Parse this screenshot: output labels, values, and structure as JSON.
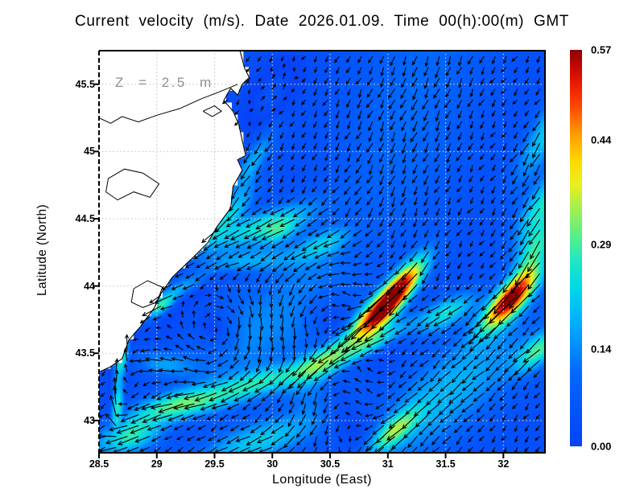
{
  "title": "Current velocity (m/s). Date 2026.01.09. Time 00(h):00(m) GMT",
  "annotation": {
    "depth_label": "Z = 2.5 m",
    "color": "#8f8f8f"
  },
  "axes": {
    "x": {
      "label": "Longitude (East)",
      "range": [
        28.5,
        32.36
      ],
      "ticks": [
        "28.5",
        "29",
        "29.5",
        "30",
        "30.5",
        "31",
        "31.5",
        "32"
      ],
      "tick_values": [
        28.5,
        29,
        29.5,
        30,
        30.5,
        31,
        31.5,
        32
      ]
    },
    "y": {
      "label": "Latitude (North)",
      "range": [
        42.76,
        45.75
      ],
      "ticks": [
        "43",
        "43.5",
        "44",
        "44.5",
        "45",
        "45.5"
      ],
      "tick_values": [
        43,
        43.5,
        44,
        44.5,
        45,
        45.5
      ]
    }
  },
  "grid": {
    "lon_lines": [
      29,
      29.5,
      30,
      30.5,
      31,
      31.5,
      32
    ],
    "lat_lines": [
      43,
      43.5,
      44,
      44.5,
      45,
      45.5
    ],
    "color": "#c9c9c9"
  },
  "colorbar": {
    "vmin": 0.0,
    "vmax": 0.57,
    "tick_labels": [
      "0.57",
      "0.44",
      "0.29",
      "0.14",
      "0.00"
    ],
    "tick_values": [
      0.57,
      0.44,
      0.29,
      0.14,
      0.0
    ]
  },
  "chart_data": {
    "type": "heatmap",
    "subtype": "current_speed_with_vector_arrows",
    "units": "m/s",
    "depth_m": 2.5,
    "speed_range": [
      0.0,
      0.57
    ],
    "arrow_color": "#000000",
    "land_color": "#ffffff",
    "colormap_stops": [
      [
        0.0,
        "#0742f8"
      ],
      [
        0.18,
        "#0066ff"
      ],
      [
        0.3,
        "#00a8ff"
      ],
      [
        0.4,
        "#00d8e8"
      ],
      [
        0.47,
        "#20e8c0"
      ],
      [
        0.53,
        "#58ee8c"
      ],
      [
        0.6,
        "#a0f050"
      ],
      [
        0.66,
        "#e8f020"
      ],
      [
        0.72,
        "#ffd800"
      ],
      [
        0.79,
        "#ff9900"
      ],
      [
        0.86,
        "#ff4400"
      ],
      [
        0.93,
        "#e01000"
      ],
      [
        1.0,
        "#900000"
      ]
    ],
    "hotspots": [
      {
        "lon": 31.07,
        "lat": 43.95,
        "speed": 0.57,
        "note": "primary jet core, oriented NE-SW, flow toward SW"
      },
      {
        "lon": 32.06,
        "lat": 43.9,
        "speed": 0.55,
        "note": "secondary jet core, oriented NE-SW, flow toward SW"
      }
    ],
    "background_flow": {
      "u": -0.025,
      "v": -0.03
    },
    "flow_blobs": [
      [
        32.38,
        45.15,
        235,
        0.17,
        0.45,
        0.13
      ],
      [
        32.34,
        44.62,
        230,
        0.2,
        0.35,
        0.12
      ],
      [
        32.28,
        44.28,
        235,
        0.22,
        0.28,
        0.12
      ],
      [
        32.06,
        43.9,
        222,
        0.52,
        0.3,
        0.105
      ],
      [
        31.5,
        43.8,
        205,
        0.2,
        0.28,
        0.1
      ],
      [
        31.07,
        43.95,
        225,
        0.55,
        0.33,
        0.1
      ],
      [
        30.85,
        43.75,
        215,
        0.28,
        0.25,
        0.12
      ],
      [
        30.5,
        43.48,
        210,
        0.26,
        0.35,
        0.11
      ],
      [
        29.95,
        43.3,
        195,
        0.2,
        0.45,
        0.1
      ],
      [
        29.2,
        43.12,
        190,
        0.26,
        0.4,
        0.11
      ],
      [
        28.75,
        42.88,
        195,
        0.24,
        0.3,
        0.13
      ],
      [
        29.85,
        44.43,
        197,
        0.2,
        0.55,
        0.11
      ],
      [
        30.06,
        44.4,
        200,
        0.13,
        0.18,
        0.08
      ],
      [
        30.45,
        44.32,
        200,
        0.13,
        0.25,
        0.09
      ],
      [
        29.75,
        44.18,
        185,
        0.15,
        0.4,
        0.09
      ],
      [
        29.82,
        44.9,
        235,
        0.14,
        0.35,
        0.09
      ],
      [
        29.62,
        44.52,
        220,
        0.15,
        0.3,
        0.08
      ],
      [
        30.0,
        45.42,
        50,
        0.09,
        0.3,
        0.15
      ],
      [
        28.7,
        43.5,
        80,
        0.3,
        0.22,
        0.065
      ],
      [
        28.66,
        43.08,
        85,
        0.3,
        0.2,
        0.06
      ],
      [
        29.05,
        43.42,
        175,
        0.13,
        0.25,
        0.1
      ],
      [
        31.5,
        43.2,
        215,
        0.15,
        0.9,
        0.3
      ],
      [
        30.9,
        43.58,
        207,
        0.17,
        0.35,
        0.07
      ],
      [
        31.05,
        42.92,
        215,
        0.22,
        0.25,
        0.09
      ],
      [
        32.3,
        43.52,
        215,
        0.22,
        0.22,
        0.1
      ],
      [
        31.2,
        45.3,
        250,
        0.07,
        1.2,
        0.5
      ],
      [
        29.25,
        44.0,
        200,
        0.15,
        0.25,
        0.08
      ],
      [
        29.03,
        43.85,
        210,
        0.24,
        0.15,
        0.06
      ],
      [
        29.9,
        42.85,
        195,
        0.18,
        0.6,
        0.15
      ]
    ],
    "vortices": [
      [
        30.45,
        43.8,
        0.08,
        0.3,
        1
      ],
      [
        29.55,
        43.65,
        0.08,
        0.25,
        -1
      ],
      [
        30.55,
        43.12,
        0.07,
        0.22,
        1
      ]
    ],
    "arrow_grid": {
      "lon0": 28.55,
      "dlon": 0.0965,
      "lat0": 42.8,
      "dlat": 0.0807
    },
    "land": {
      "coast": [
        [
          29.72,
          45.75
        ],
        [
          29.76,
          45.62
        ],
        [
          29.8,
          45.55
        ],
        [
          29.74,
          45.5
        ],
        [
          29.7,
          45.42
        ],
        [
          29.64,
          45.47
        ],
        [
          29.58,
          45.38
        ],
        [
          29.66,
          45.3
        ],
        [
          29.71,
          45.2
        ],
        [
          29.74,
          45.08
        ],
        [
          29.77,
          44.97
        ],
        [
          29.7,
          44.94
        ],
        [
          29.74,
          44.86
        ],
        [
          29.66,
          44.74
        ],
        [
          29.64,
          44.58
        ],
        [
          29.52,
          44.44
        ],
        [
          29.44,
          44.32
        ],
        [
          29.3,
          44.2
        ],
        [
          29.14,
          44.07
        ],
        [
          29.04,
          43.95
        ],
        [
          28.98,
          43.84
        ],
        [
          28.86,
          43.7
        ],
        [
          28.76,
          43.6
        ],
        [
          28.7,
          43.46
        ],
        [
          28.6,
          43.4
        ],
        [
          28.5,
          43.36
        ]
      ],
      "lakes": [
        [
          [
            28.58,
            44.8
          ],
          [
            28.72,
            44.87
          ],
          [
            28.88,
            44.84
          ],
          [
            29.02,
            44.76
          ],
          [
            28.94,
            44.66
          ],
          [
            28.8,
            44.7
          ],
          [
            28.66,
            44.64
          ],
          [
            28.56,
            44.7
          ],
          [
            28.58,
            44.8
          ]
        ],
        [
          [
            28.8,
            43.98
          ],
          [
            28.92,
            44.04
          ],
          [
            29.05,
            43.99
          ],
          [
            29.0,
            43.88
          ],
          [
            28.88,
            43.84
          ],
          [
            28.78,
            43.88
          ],
          [
            28.8,
            43.98
          ]
        ],
        [
          [
            29.4,
            45.3
          ],
          [
            29.5,
            45.34
          ],
          [
            29.56,
            45.3
          ],
          [
            29.48,
            45.26
          ],
          [
            29.4,
            45.3
          ]
        ]
      ],
      "river": [
        [
          28.5,
          45.25
        ],
        [
          28.6,
          45.21
        ],
        [
          28.7,
          45.26
        ],
        [
          28.84,
          45.22
        ],
        [
          29.0,
          45.27
        ],
        [
          29.2,
          45.32
        ],
        [
          29.38,
          45.39
        ],
        [
          29.56,
          45.45
        ],
        [
          29.7,
          45.5
        ]
      ]
    }
  }
}
